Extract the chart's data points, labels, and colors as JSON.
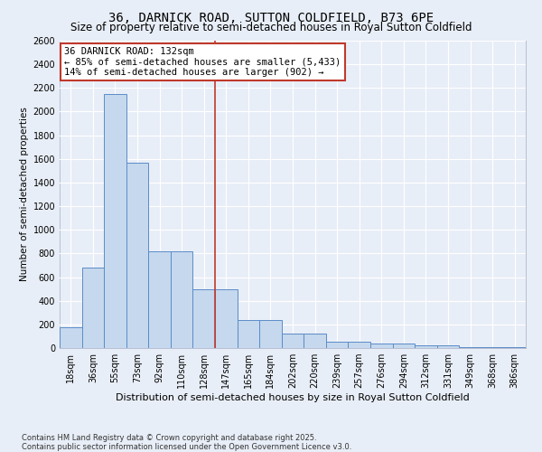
{
  "title": "36, DARNICK ROAD, SUTTON COLDFIELD, B73 6PE",
  "subtitle": "Size of property relative to semi-detached houses in Royal Sutton Coldfield",
  "xlabel": "Distribution of semi-detached houses by size in Royal Sutton Coldfield",
  "ylabel": "Number of semi-detached properties",
  "categories": [
    "18sqm",
    "36sqm",
    "55sqm",
    "73sqm",
    "92sqm",
    "110sqm",
    "128sqm",
    "147sqm",
    "165sqm",
    "184sqm",
    "202sqm",
    "220sqm",
    "239sqm",
    "257sqm",
    "276sqm",
    "294sqm",
    "312sqm",
    "331sqm",
    "349sqm",
    "368sqm",
    "386sqm"
  ],
  "values": [
    175,
    680,
    2150,
    1570,
    820,
    820,
    500,
    500,
    240,
    240,
    120,
    120,
    55,
    55,
    40,
    40,
    22,
    22,
    8,
    8,
    8
  ],
  "bar_color": "#c5d8ed",
  "bar_edge_color": "#5b8cc8",
  "vline_index": 6.5,
  "vline_color": "#c0392b",
  "annotation_text": "36 DARNICK ROAD: 132sqm\n← 85% of semi-detached houses are smaller (5,433)\n14% of semi-detached houses are larger (902) →",
  "annotation_box_edgecolor": "#c0392b",
  "ylim": [
    0,
    2600
  ],
  "yticks": [
    0,
    200,
    400,
    600,
    800,
    1000,
    1200,
    1400,
    1600,
    1800,
    2000,
    2200,
    2400,
    2600
  ],
  "background_color": "#e8eef7",
  "grid_color": "#ffffff",
  "footer_line1": "Contains HM Land Registry data © Crown copyright and database right 2025.",
  "footer_line2": "Contains public sector information licensed under the Open Government Licence v3.0.",
  "title_fontsize": 10,
  "subtitle_fontsize": 8.5,
  "xlabel_fontsize": 8,
  "ylabel_fontsize": 7.5,
  "tick_fontsize": 7,
  "annotation_fontsize": 7.5,
  "footer_fontsize": 6
}
